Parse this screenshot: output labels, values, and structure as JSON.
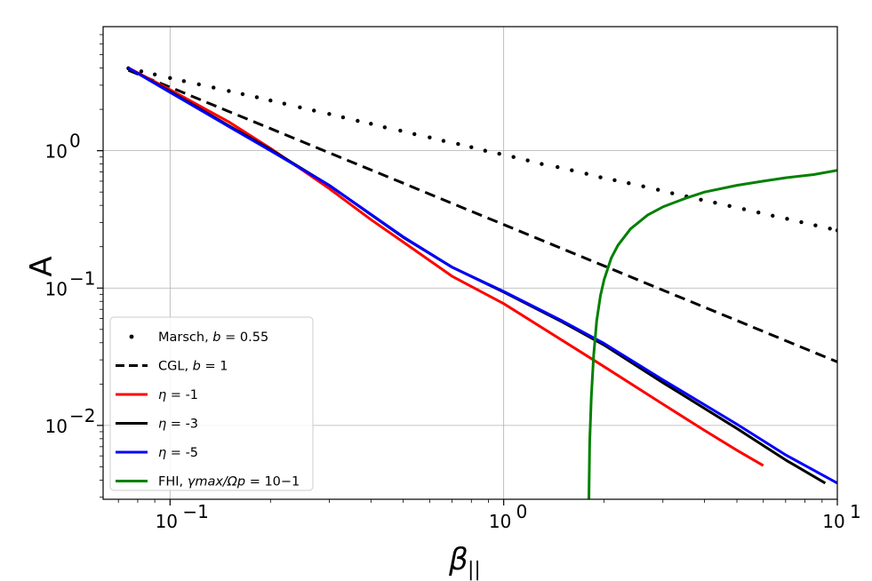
{
  "chart_data": {
    "type": "line",
    "xlabel": "β",
    "xlabel_sub": "||",
    "ylabel": "A",
    "xscale": "log",
    "yscale": "log",
    "xlim": [
      0.063,
      10
    ],
    "ylim": [
      0.0029,
      8.0
    ],
    "grid": true,
    "legend_position": "lower-left",
    "xticks": [
      {
        "value": 0.1,
        "base": "10",
        "exp": "−1"
      },
      {
        "value": 1,
        "base": "10",
        "exp": "0"
      },
      {
        "value": 10,
        "base": "10",
        "exp": "1"
      }
    ],
    "yticks": [
      {
        "value": 0.01,
        "base": "10",
        "exp": "−2"
      },
      {
        "value": 0.1,
        "base": "10",
        "exp": "−1"
      },
      {
        "value": 1,
        "base": "10",
        "exp": "0"
      }
    ],
    "series": [
      {
        "name": "Marsch, b = 0.55",
        "legend": {
          "main": "Marsch, ",
          "italic": "b",
          "rest": " = 0.55"
        },
        "style": "dotted",
        "color": "#000000",
        "x": [
          0.075,
          0.082,
          0.09,
          0.1,
          0.11,
          0.122,
          0.135,
          0.15,
          0.165,
          0.182,
          0.2,
          0.22,
          0.245,
          0.27,
          0.3,
          0.33,
          0.365,
          0.4,
          0.44,
          0.49,
          0.54,
          0.6,
          0.66,
          0.73,
          0.8,
          0.88,
          0.97,
          1.07,
          1.18,
          1.3,
          1.45,
          1.6,
          1.77,
          1.95,
          2.15,
          2.37,
          2.62,
          2.9,
          3.2,
          3.53,
          3.9,
          4.3,
          4.75,
          5.25,
          5.8,
          6.4,
          7.07,
          7.8,
          8.6,
          9.5,
          10
        ],
        "y": [
          3.98,
          3.78,
          3.59,
          3.38,
          3.21,
          3.04,
          2.88,
          2.72,
          2.58,
          2.45,
          2.32,
          2.2,
          2.07,
          1.96,
          1.85,
          1.75,
          1.65,
          1.57,
          1.48,
          1.4,
          1.32,
          1.25,
          1.18,
          1.12,
          1.06,
          1.0,
          0.95,
          0.9,
          0.85,
          0.8,
          0.76,
          0.72,
          0.68,
          0.64,
          0.61,
          0.58,
          0.55,
          0.52,
          0.49,
          0.465,
          0.44,
          0.418,
          0.396,
          0.375,
          0.355,
          0.336,
          0.319,
          0.302,
          0.286,
          0.271,
          0.263
        ]
      },
      {
        "name": "CGL, b = 1",
        "legend": {
          "main": "CGL, ",
          "italic": "b",
          "rest": " = 1"
        },
        "style": "dashed",
        "color": "#000000",
        "x": [
          0.075,
          0.1,
          0.15,
          0.2,
          0.3,
          0.5,
          0.7,
          1.0,
          1.5,
          2.0,
          3.0,
          5.0,
          7.0,
          10.0
        ],
        "y": [
          3.85,
          2.9,
          1.93,
          1.45,
          0.965,
          0.58,
          0.414,
          0.29,
          0.193,
          0.145,
          0.0965,
          0.058,
          0.0414,
          0.029
        ]
      },
      {
        "name": "η = -1",
        "legend": {
          "main": "",
          "italic": "η",
          "rest": " = -1"
        },
        "style": "solid",
        "color": "#ff0000",
        "x": [
          0.075,
          0.1,
          0.15,
          0.2,
          0.25,
          0.3,
          0.4,
          0.5,
          0.7,
          1.0,
          1.5,
          2.0,
          3.0,
          4.0,
          5.0,
          6.0
        ],
        "y": [
          4.0,
          2.78,
          1.62,
          1.04,
          0.72,
          0.53,
          0.315,
          0.216,
          0.122,
          0.077,
          0.0415,
          0.0268,
          0.0143,
          0.0092,
          0.0066,
          0.0051
        ]
      },
      {
        "name": "η = -3",
        "legend": {
          "main": "",
          "italic": "η",
          "rest": " = -3"
        },
        "style": "solid",
        "color": "#000000",
        "x": [
          0.075,
          0.1,
          0.15,
          0.2,
          0.3,
          0.5,
          0.7,
          1.0,
          1.5,
          2.0,
          3.0,
          5.0,
          7.0,
          9.2
        ],
        "y": [
          4.0,
          2.7,
          1.52,
          1.02,
          0.56,
          0.234,
          0.142,
          0.0935,
          0.0565,
          0.0385,
          0.0205,
          0.0095,
          0.0056,
          0.0038
        ]
      },
      {
        "name": "η = -5",
        "legend": {
          "main": "",
          "italic": "η",
          "rest": " = -5"
        },
        "style": "solid",
        "color": "#0000ff",
        "x": [
          0.075,
          0.1,
          0.15,
          0.2,
          0.3,
          0.5,
          0.7,
          1.0,
          1.5,
          2.0,
          3.0,
          5.0,
          7.0,
          10.0
        ],
        "y": [
          4.0,
          2.66,
          1.5,
          1.0,
          0.56,
          0.236,
          0.142,
          0.0945,
          0.0575,
          0.0395,
          0.0215,
          0.0102,
          0.0061,
          0.0038
        ]
      },
      {
        "name": "FHI, γmax/Ωp = 10^-1",
        "legend": {
          "main": "FHI, ",
          "italic": "γmax/Ωp",
          "rest": " = 10−1"
        },
        "style": "solid",
        "color": "#008000",
        "x": [
          1.8,
          1.81,
          1.83,
          1.86,
          1.9,
          1.95,
          2.0,
          2.1,
          2.2,
          2.4,
          2.7,
          3.0,
          3.5,
          4.0,
          5.0,
          6.0,
          7.0,
          8.5,
          10.0
        ],
        "y": [
          0.0029,
          0.0075,
          0.016,
          0.032,
          0.058,
          0.088,
          0.115,
          0.165,
          0.205,
          0.27,
          0.34,
          0.39,
          0.45,
          0.5,
          0.56,
          0.6,
          0.635,
          0.67,
          0.72
        ]
      }
    ]
  }
}
